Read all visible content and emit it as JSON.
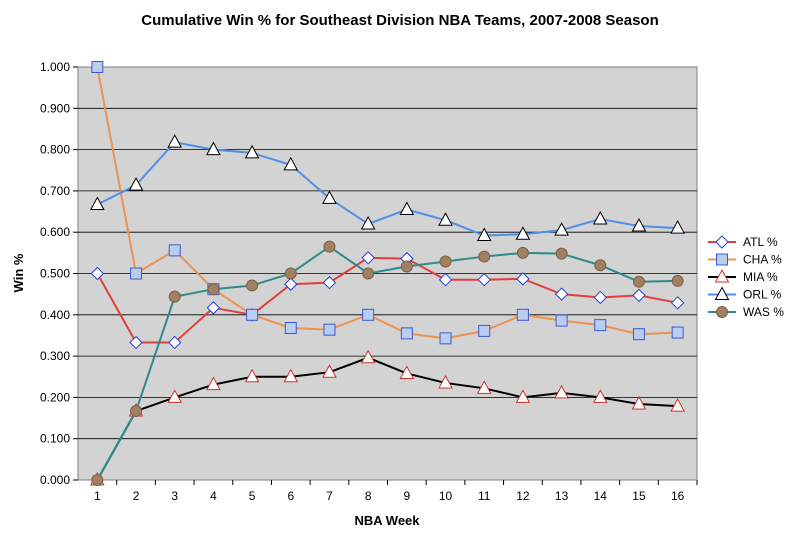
{
  "chart_data": {
    "type": "line",
    "title": "Cumulative Win % for Southeast Division NBA Teams, 2007-2008 Season",
    "xlabel": "NBA Week",
    "ylabel": "Win %",
    "x": [
      1,
      2,
      3,
      4,
      5,
      6,
      7,
      8,
      9,
      10,
      11,
      12,
      13,
      14,
      15,
      16
    ],
    "ylim": [
      0,
      1
    ],
    "yticks": [
      "0.000",
      "0.100",
      "0.200",
      "0.300",
      "0.400",
      "0.500",
      "0.600",
      "0.700",
      "0.800",
      "0.900",
      "1.000"
    ],
    "grid": true,
    "legend_position": "right",
    "series": [
      {
        "name": "ATL %",
        "color": "#e0403a",
        "marker": "diamond",
        "values": [
          0.5,
          0.333,
          0.333,
          0.417,
          0.4,
          0.474,
          0.478,
          0.538,
          0.536,
          0.485,
          0.485,
          0.487,
          0.45,
          0.442,
          0.447,
          0.429
        ]
      },
      {
        "name": "CHA %",
        "color": "#f0924f",
        "marker": "square",
        "values": [
          1.0,
          0.5,
          0.556,
          0.462,
          0.4,
          0.368,
          0.364,
          0.4,
          0.355,
          0.343,
          0.361,
          0.4,
          0.386,
          0.375,
          0.353,
          0.357
        ]
      },
      {
        "name": "MIA %",
        "color": "#000000",
        "marker": "triangle",
        "values": [
          0.0,
          0.167,
          0.2,
          0.231,
          0.25,
          0.25,
          0.261,
          0.296,
          0.258,
          0.235,
          0.222,
          0.2,
          0.211,
          0.2,
          0.184,
          0.179
        ]
      },
      {
        "name": "ORL %",
        "color": "#4f8fe6",
        "marker": "triangle",
        "values": [
          0.667,
          0.714,
          0.818,
          0.8,
          0.792,
          0.763,
          0.682,
          0.62,
          0.655,
          0.629,
          0.592,
          0.595,
          0.605,
          0.632,
          0.615,
          0.61
        ]
      },
      {
        "name": "WAS %",
        "color": "#2e8b8b",
        "marker": "circle",
        "values": [
          0.0,
          0.167,
          0.444,
          0.462,
          0.471,
          0.5,
          0.565,
          0.5,
          0.517,
          0.529,
          0.541,
          0.55,
          0.548,
          0.52,
          0.48,
          0.482
        ]
      }
    ]
  }
}
